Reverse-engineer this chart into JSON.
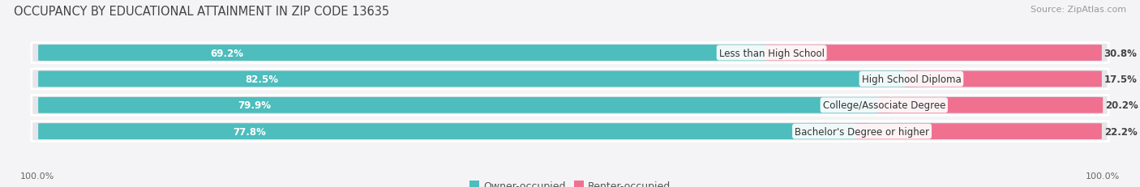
{
  "title": "OCCUPANCY BY EDUCATIONAL ATTAINMENT IN ZIP CODE 13635",
  "source": "Source: ZipAtlas.com",
  "categories": [
    "Less than High School",
    "High School Diploma",
    "College/Associate Degree",
    "Bachelor's Degree or higher"
  ],
  "owner_values": [
    69.2,
    82.5,
    79.9,
    77.8
  ],
  "renter_values": [
    30.8,
    17.5,
    20.2,
    22.2
  ],
  "owner_color": "#4DBDBD",
  "renter_color": "#F07090",
  "bar_bg_color": "#E6E6EA",
  "fig_bg_color": "#F4F4F6",
  "title_fontsize": 10.5,
  "source_fontsize": 8,
  "label_fontsize": 8.5,
  "category_fontsize": 8.5,
  "legend_fontsize": 9,
  "tick_fontsize": 8,
  "owner_label": "Owner-occupied",
  "renter_label": "Renter-occupied",
  "left_tick": "100.0%",
  "right_tick": "100.0%"
}
